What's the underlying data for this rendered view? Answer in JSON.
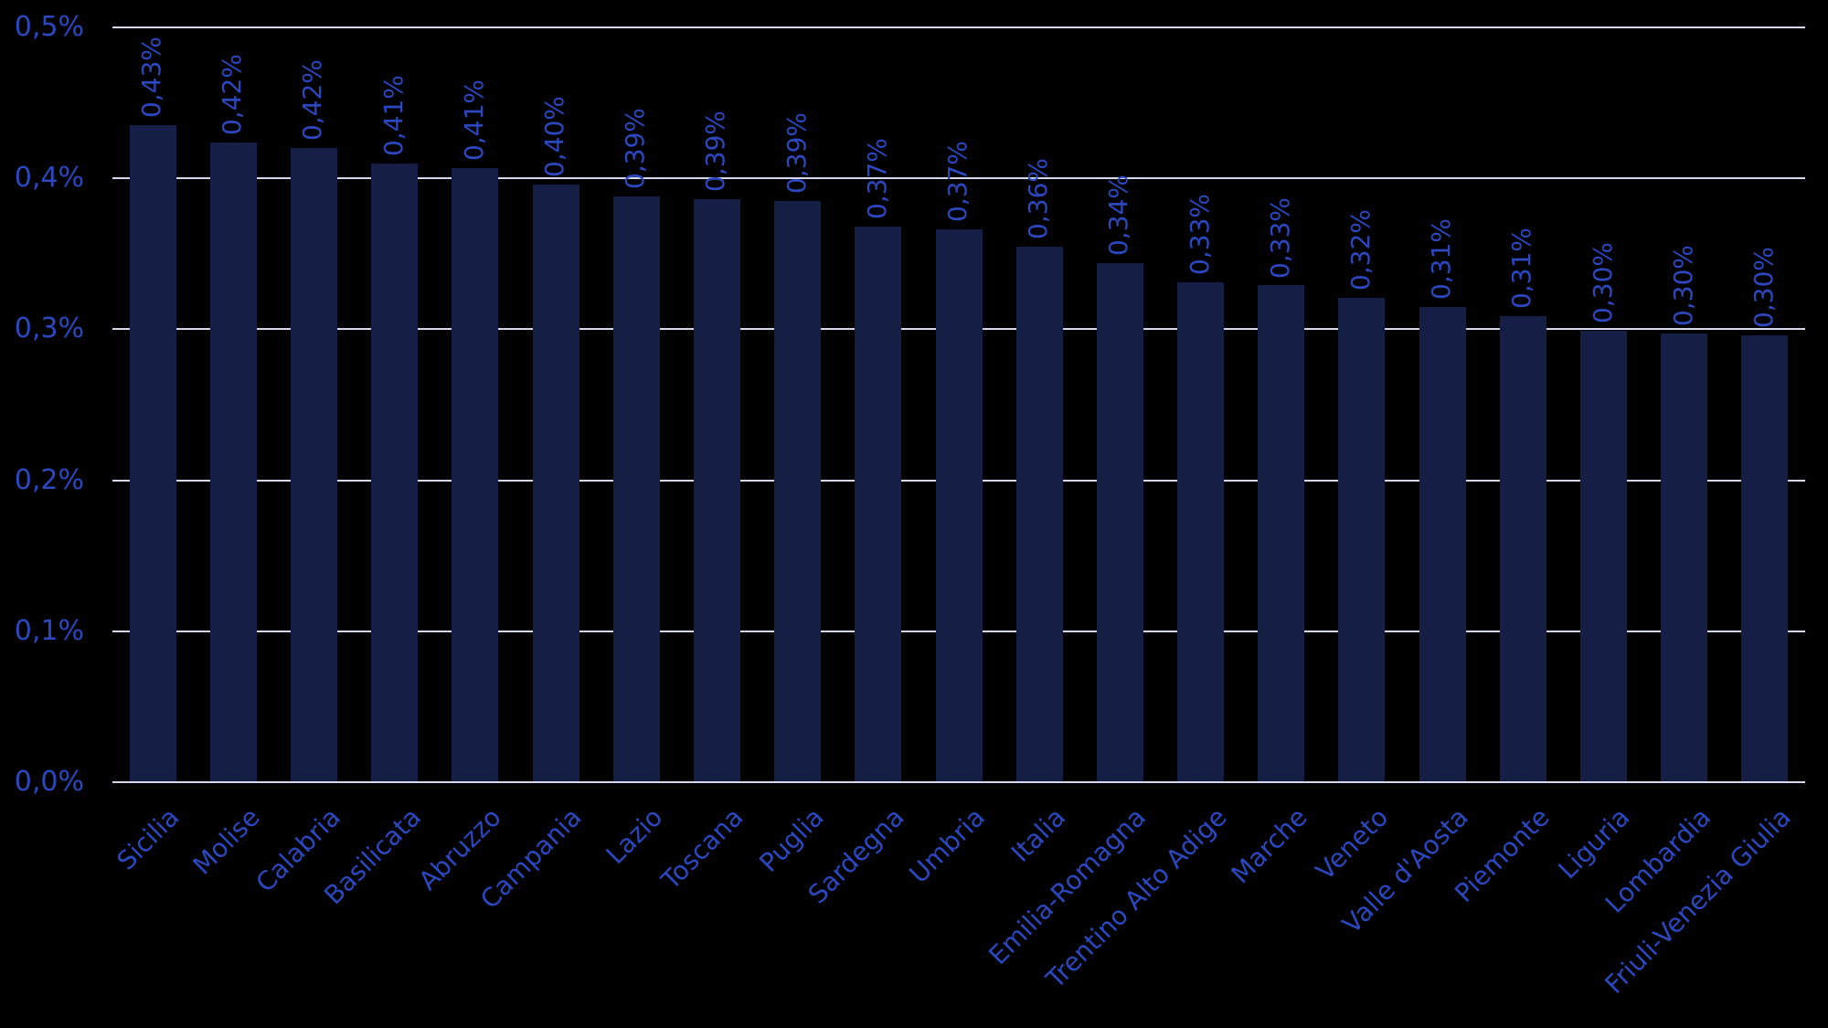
{
  "chart_data": {
    "type": "bar",
    "title": "",
    "xlabel": "",
    "ylabel": "",
    "ylim": [
      0,
      0.5
    ],
    "grid": true,
    "legend": false,
    "value_unit": "percent",
    "decimal_separator": "comma",
    "categories": [
      "Sicilia",
      "Molise",
      "Calabria",
      "Basilicata",
      "Abruzzo",
      "Campania",
      "Lazio",
      "Toscana",
      "Puglia",
      "Sardegna",
      "Umbria",
      "Italia",
      "Emilia-Romagna",
      "Trentino Alto Adige",
      "Marche",
      "Veneto",
      "Valle d'Aosta",
      "Piemonte",
      "Liguria",
      "Lombardia",
      "Friuli-Venezia Giulia"
    ],
    "values": [
      0.435,
      0.424,
      0.42,
      0.41,
      0.407,
      0.396,
      0.388,
      0.386,
      0.385,
      0.368,
      0.366,
      0.355,
      0.344,
      0.331,
      0.329,
      0.321,
      0.315,
      0.309,
      0.299,
      0.297,
      0.296
    ],
    "value_labels": [
      "0,43%",
      "0,42%",
      "0,42%",
      "0,41%",
      "0,41%",
      "0,40%",
      "0,39%",
      "0,39%",
      "0,39%",
      "0,37%",
      "0,37%",
      "0,36%",
      "0,34%",
      "0,33%",
      "0,33%",
      "0,32%",
      "0,31%",
      "0,31%",
      "0,30%",
      "0,30%",
      "0,30%"
    ],
    "yticks": [
      {
        "value": 0.0,
        "label": "0,0%"
      },
      {
        "value": 0.1,
        "label": "0,1%"
      },
      {
        "value": 0.2,
        "label": "0,2%"
      },
      {
        "value": 0.3,
        "label": "0,3%"
      },
      {
        "value": 0.4,
        "label": "0,4%"
      },
      {
        "value": 0.5,
        "label": "0,5%"
      }
    ],
    "colors": {
      "background": "#000000",
      "bar": "#151F45",
      "text": "#2B48C0",
      "gridline": "#D4D9F0"
    }
  }
}
